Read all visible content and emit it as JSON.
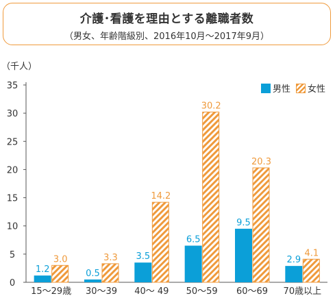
{
  "header": {
    "title": "介護･看護を理由とする離職者数",
    "subtitle": "（男女、年齢階級別、2016年10月～2017年9月）"
  },
  "colors": {
    "male": "#0b9fd8",
    "female": "#ef9a3c",
    "axis": "#555555",
    "text": "#333333"
  },
  "chart_data": {
    "type": "bar",
    "title": "介護･看護を理由とする離職者数",
    "ylabel": "（千人）",
    "xlabel": "",
    "ylim": [
      0,
      35
    ],
    "yticks": [
      0,
      5,
      10,
      15,
      20,
      25,
      30,
      35
    ],
    "categories": [
      "15～29歳",
      "30～39",
      "40～ 49",
      "50～59",
      "60～69",
      "70歳以上"
    ],
    "series": [
      {
        "name": "男性",
        "values": [
          1.2,
          0.5,
          3.5,
          6.5,
          9.5,
          2.9
        ]
      },
      {
        "name": "女性",
        "values": [
          3.0,
          3.3,
          14.2,
          30.2,
          20.3,
          4.1
        ]
      }
    ],
    "legend_position": "top-right",
    "grid": false
  }
}
